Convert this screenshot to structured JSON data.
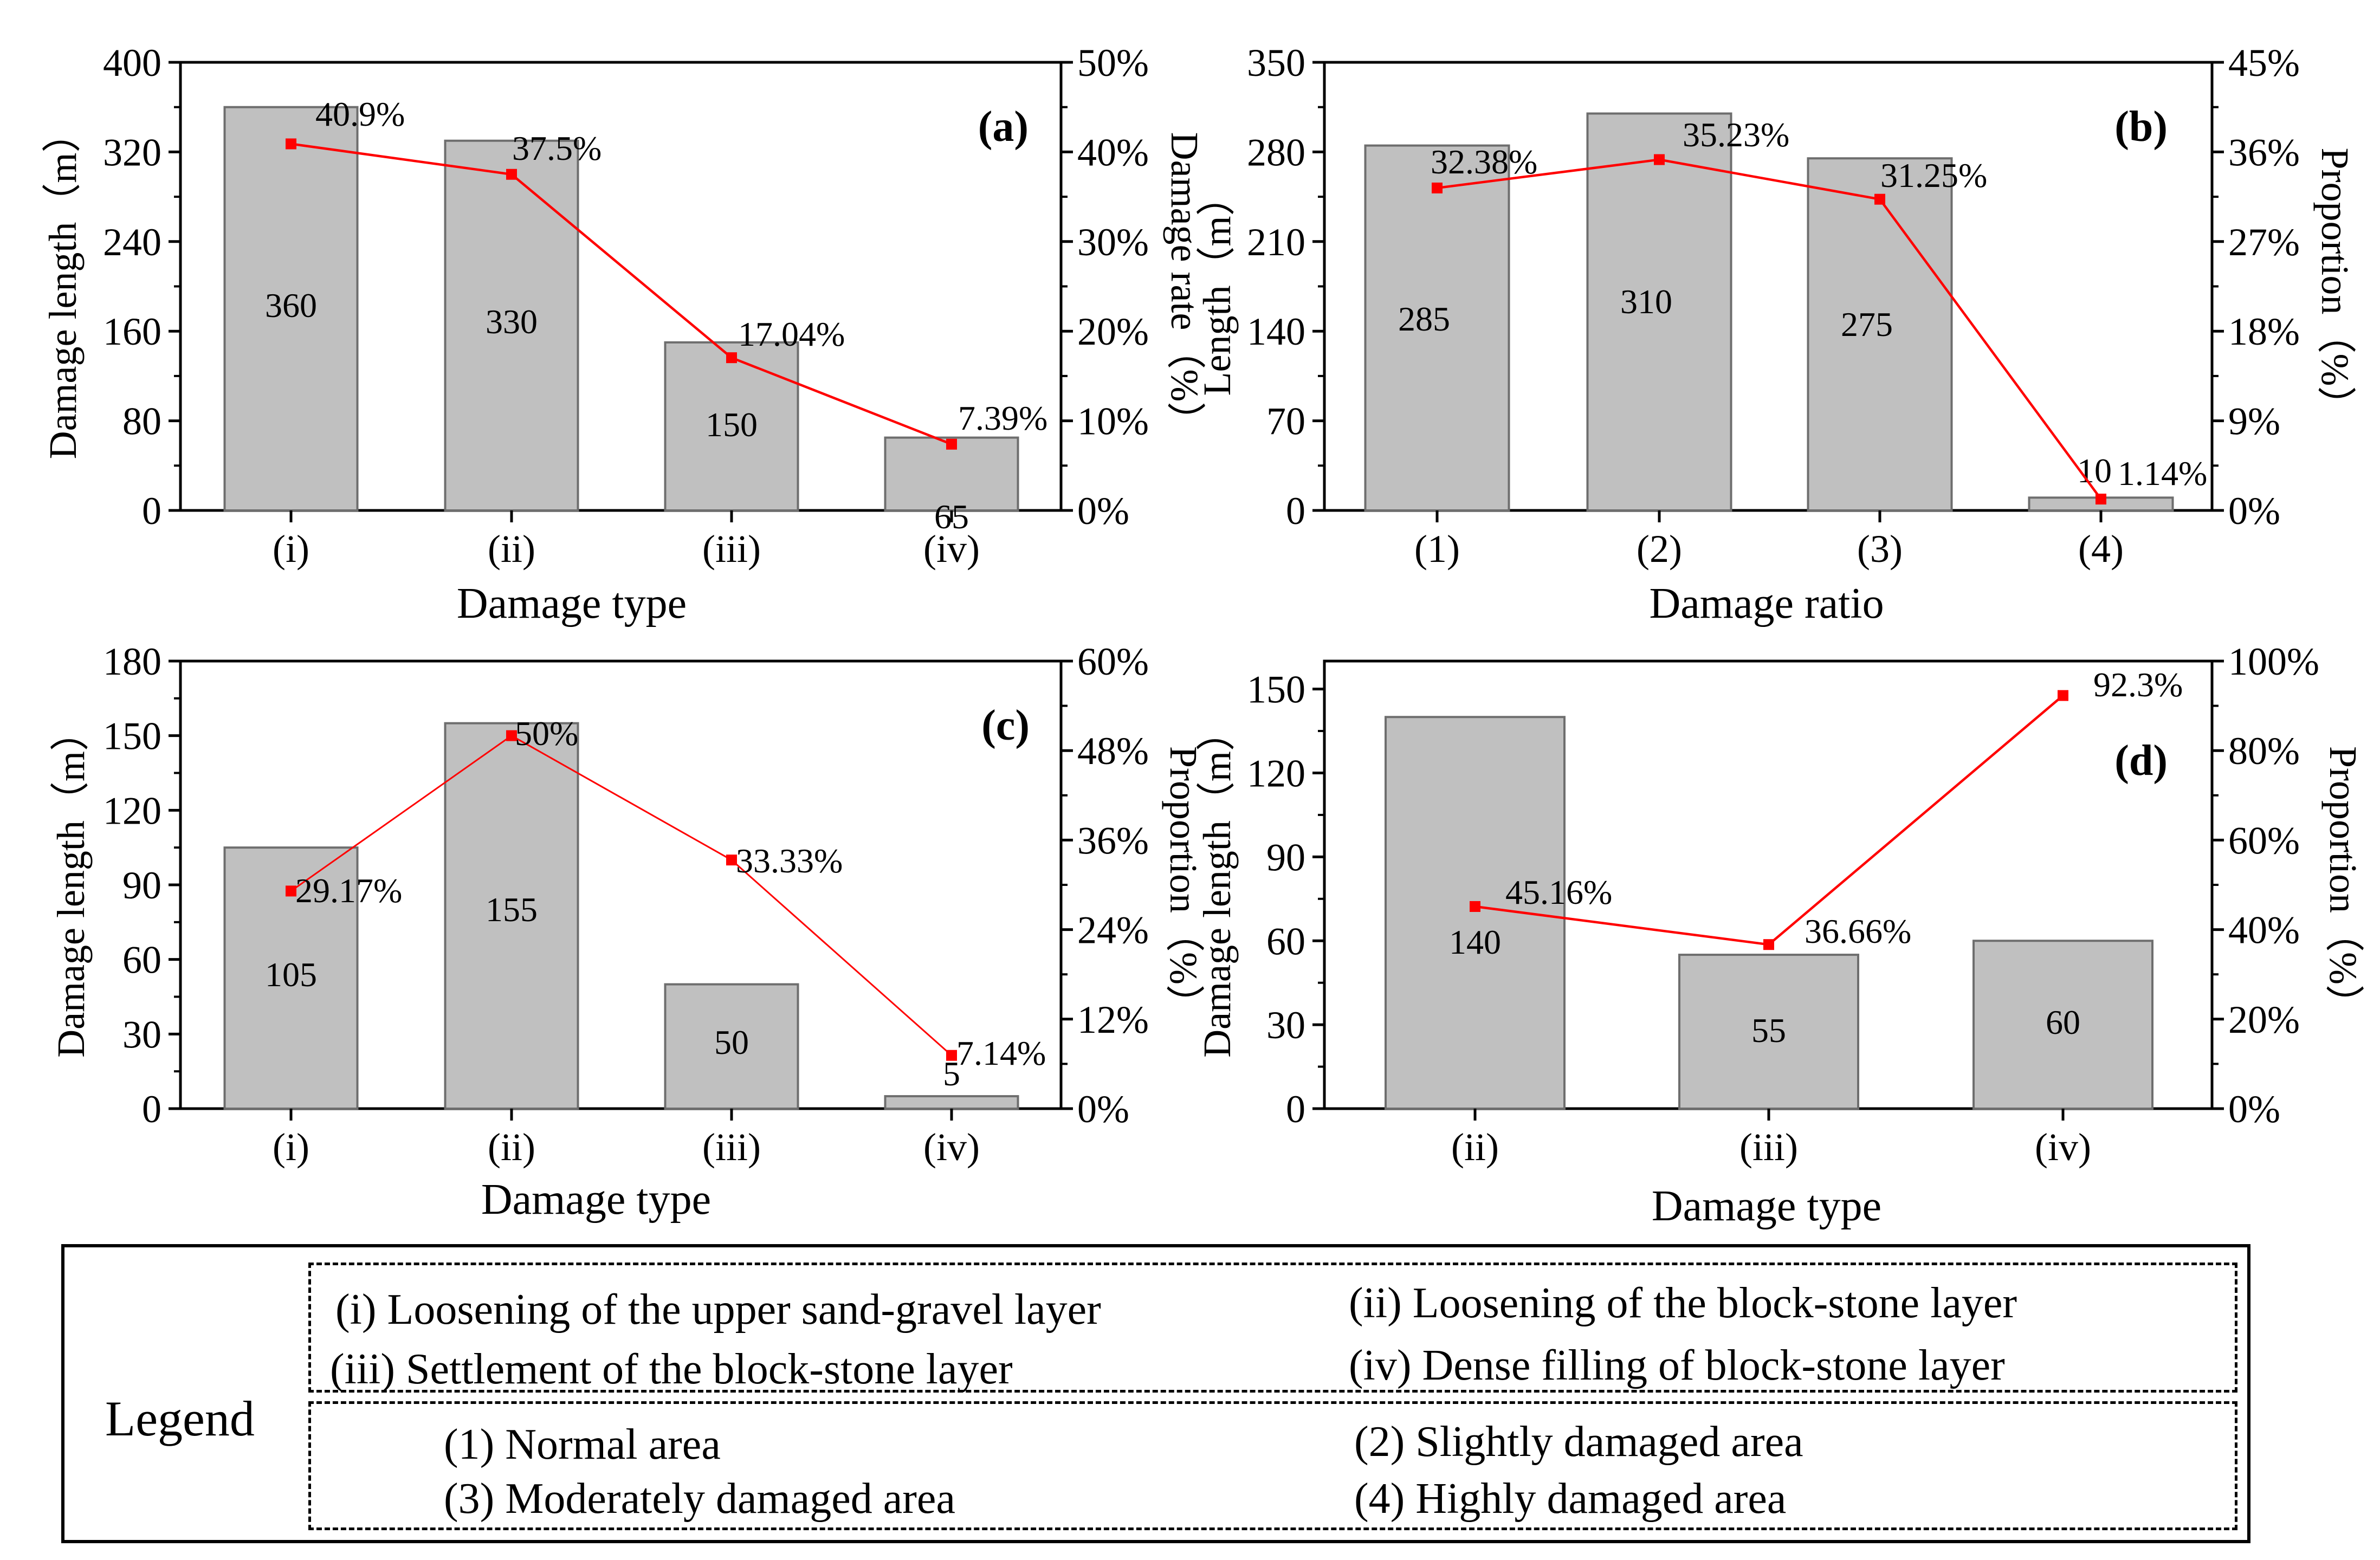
{
  "colors": {
    "bar_fill": "#c0c0c0",
    "bar_stroke": "#6e6e6e",
    "line": "#ff0000",
    "marker": "#ff0000"
  },
  "chart_data": [
    {
      "panel": "(a)",
      "type": "bar",
      "categories": [
        "(i)",
        "(ii)",
        "(iii)",
        "(iv)"
      ],
      "xlabel": "Damage type",
      "ylabel": "Damage length（m）",
      "y2label": "Damage rate（%）",
      "ylim": [
        0,
        400
      ],
      "yticks": [
        "0",
        "80",
        "160",
        "240",
        "320",
        "400"
      ],
      "y2lim": [
        0,
        50
      ],
      "y2ticks": [
        "0%",
        "10%",
        "20%",
        "30%",
        "40%",
        "50%"
      ],
      "series": [
        {
          "type": "bar",
          "values": [
            360,
            330,
            150,
            65
          ],
          "labels": [
            "360",
            "330",
            "150",
            "65"
          ]
        },
        {
          "type": "line",
          "axis": "right",
          "values": [
            40.9,
            37.5,
            17.04,
            7.39
          ],
          "labels": [
            "40.9%",
            "37.5%",
            "17.04%",
            "7.39%"
          ]
        }
      ]
    },
    {
      "panel": "(b)",
      "type": "bar",
      "categories": [
        "(1)",
        "(2)",
        "(3)",
        "(4)"
      ],
      "xlabel": "Damage ratio",
      "ylabel": "Length（m）",
      "y2label": "Proportion（%）",
      "ylim": [
        0,
        350
      ],
      "yticks": [
        "0",
        "70",
        "140",
        "210",
        "280",
        "350"
      ],
      "y2lim": [
        0,
        45
      ],
      "y2ticks": [
        "0%",
        "9%",
        "18%",
        "27%",
        "36%",
        "45%"
      ],
      "series": [
        {
          "type": "bar",
          "values": [
            285,
            310,
            275,
            10
          ],
          "labels": [
            "285",
            "310",
            "275",
            "10"
          ]
        },
        {
          "type": "line",
          "axis": "right",
          "values": [
            32.38,
            35.23,
            31.25,
            1.14
          ],
          "labels": [
            "32.38%",
            "35.23%",
            "31.25%",
            "1.14%"
          ]
        }
      ]
    },
    {
      "panel": "(c)",
      "type": "bar",
      "categories": [
        "(i)",
        "(ii)",
        "(iii)",
        "(iv)"
      ],
      "xlabel": "Damage type",
      "ylabel": "Damage length（m）",
      "y2label": "Proportion（%）",
      "ylim": [
        0,
        180
      ],
      "yticks": [
        "0",
        "30",
        "60",
        "90",
        "120",
        "150",
        "180"
      ],
      "y2lim": [
        0,
        60
      ],
      "y2ticks": [
        "0%",
        "12%",
        "24%",
        "36%",
        "48%",
        "60%"
      ],
      "series": [
        {
          "type": "bar",
          "values": [
            105,
            155,
            50,
            5
          ],
          "labels": [
            "105",
            "155",
            "50",
            "5"
          ]
        },
        {
          "type": "line",
          "axis": "right",
          "values": [
            29.17,
            50,
            33.33,
            7.14
          ],
          "labels": [
            "29.17%",
            "50%",
            "33.33%",
            "7.14%"
          ]
        }
      ]
    },
    {
      "panel": "(d)",
      "type": "bar",
      "categories": [
        "(ii)",
        "(iii)",
        "(iv)"
      ],
      "xlabel": "Damage type",
      "ylabel": "Damage length（m）",
      "y2label": "Proportion（%）",
      "ylim": [
        0,
        160
      ],
      "yticks": [
        "0",
        "30",
        "60",
        "90",
        "120",
        "150"
      ],
      "y2lim": [
        0,
        100
      ],
      "y2ticks": [
        "0%",
        "20%",
        "40%",
        "60%",
        "80%",
        "100%"
      ],
      "series": [
        {
          "type": "bar",
          "values": [
            140,
            55,
            60
          ],
          "labels": [
            "140",
            "55",
            "60"
          ]
        },
        {
          "type": "line",
          "axis": "right",
          "values": [
            45.16,
            36.66,
            92.3
          ],
          "labels": [
            "45.16%",
            "36.66%",
            "92.3%"
          ]
        }
      ]
    }
  ],
  "legend": {
    "title": "Legend",
    "damage_types": [
      "(i) Loosening of the upper sand-gravel layer",
      "(ii) Loosening of the block-stone layer",
      "(iii) Settlement of the block-stone layer",
      "(iv) Dense filling of block-stone layer"
    ],
    "damage_areas": [
      "(1) Normal area",
      "(2) Slightly damaged area",
      "(3) Moderately damaged area",
      "(4) Highly damaged area"
    ]
  }
}
